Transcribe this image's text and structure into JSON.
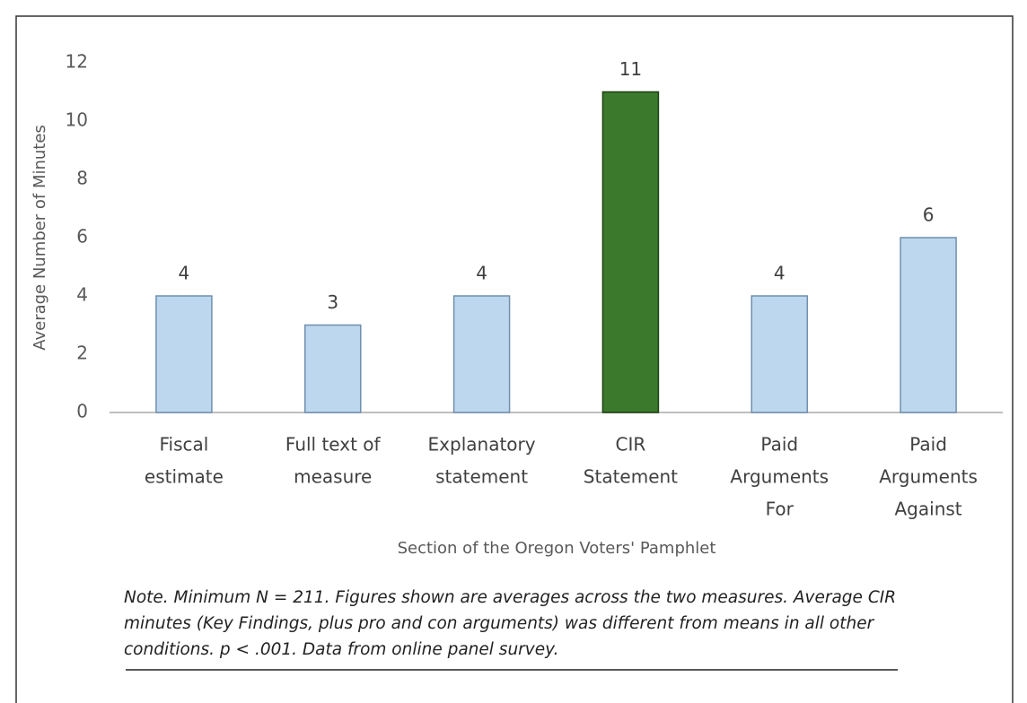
{
  "chart_data": {
    "type": "bar",
    "categories": [
      [
        "Fiscal",
        "estimate"
      ],
      [
        "Full text of",
        "measure"
      ],
      [
        "Explanatory",
        "statement"
      ],
      [
        "CIR",
        "Statement"
      ],
      [
        "Paid",
        "Arguments",
        "For"
      ],
      [
        "Paid",
        "Arguments",
        "Against"
      ]
    ],
    "values": [
      4,
      3,
      4,
      11,
      4,
      6
    ],
    "colors": [
      "#bdd7ee",
      "#bdd7ee",
      "#bdd7ee",
      "#3b7a2c",
      "#bdd7ee",
      "#bdd7ee"
    ],
    "ylim": [
      0,
      12
    ],
    "yticks": [
      0,
      2,
      4,
      6,
      8,
      10,
      12
    ],
    "grid": false,
    "y_label": "Average Number of Minutes",
    "x_label": "Section of the Oregon Voters' Pamphlet",
    "note": "Note. Minimum N = 211. Figures shown are averages across the two measures. Average CIR minutes (Key Findings, plus pro and con arguments) was different from means in all other conditions. p < .001. Data from online panel survey."
  }
}
